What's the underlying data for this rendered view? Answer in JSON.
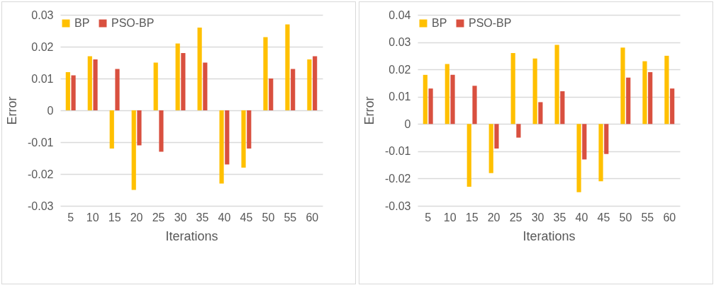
{
  "chart_data": [
    {
      "type": "bar",
      "xlabel": "Iterations",
      "ylabel": "Error",
      "categories": [
        "5",
        "10",
        "15",
        "20",
        "25",
        "30",
        "35",
        "40",
        "45",
        "50",
        "55",
        "60"
      ],
      "series": [
        {
          "name": "BP",
          "color": "#ffc000",
          "values": [
            0.012,
            0.017,
            -0.012,
            -0.025,
            0.015,
            0.021,
            0.026,
            -0.023,
            -0.018,
            0.023,
            0.027,
            0.016
          ]
        },
        {
          "name": "PSO-BP",
          "color": "#d9503f",
          "values": [
            0.011,
            0.016,
            0.013,
            -0.011,
            -0.013,
            0.018,
            0.015,
            -0.017,
            -0.012,
            0.01,
            0.013,
            0.017
          ]
        }
      ],
      "ylim": [
        -0.03,
        0.03
      ],
      "yticks": [
        -0.03,
        -0.02,
        -0.01,
        0,
        0.01,
        0.02,
        0.03
      ],
      "grid": "y",
      "legend": "top"
    },
    {
      "type": "bar",
      "xlabel": "Iterations",
      "ylabel": "Error",
      "categories": [
        "5",
        "10",
        "15",
        "20",
        "25",
        "30",
        "35",
        "40",
        "45",
        "50",
        "55",
        "60"
      ],
      "series": [
        {
          "name": "BP",
          "color": "#ffc000",
          "values": [
            0.018,
            0.022,
            -0.023,
            -0.018,
            0.026,
            0.024,
            0.029,
            -0.025,
            -0.021,
            0.028,
            0.023,
            0.025
          ]
        },
        {
          "name": "PSO-BP",
          "color": "#d9503f",
          "values": [
            0.013,
            0.018,
            0.014,
            -0.009,
            -0.005,
            0.008,
            0.012,
            -0.013,
            -0.011,
            0.017,
            0.019,
            0.013
          ]
        }
      ],
      "ylim": [
        -0.03,
        0.04
      ],
      "yticks": [
        -0.03,
        -0.02,
        -0.01,
        0,
        0.01,
        0.02,
        0.03,
        0.04
      ],
      "grid": "y",
      "legend": "top"
    }
  ]
}
